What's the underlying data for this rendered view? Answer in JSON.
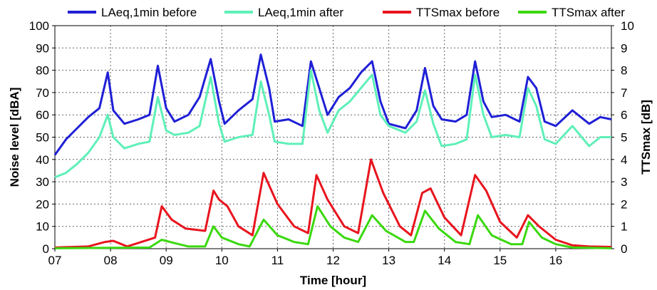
{
  "chart_data": {
    "type": "line",
    "xlabel": "Time [hour]",
    "ylabel": "Noise level [dBA]",
    "y2label": "TTSmax [dB]",
    "xlim": [
      7,
      17
    ],
    "ylim": [
      0,
      100
    ],
    "y2lim": [
      0,
      10
    ],
    "x_ticks": [
      "07",
      "08",
      "09",
      "10",
      "11",
      "12",
      "13",
      "14",
      "15",
      "16"
    ],
    "y_ticks": [
      "0",
      "10",
      "20",
      "30",
      "40",
      "50",
      "60",
      "70",
      "80",
      "90",
      "100"
    ],
    "y2_ticks": [
      "0",
      "1",
      "2",
      "3",
      "4",
      "5",
      "6",
      "7",
      "8",
      "9",
      "10"
    ],
    "grid": true,
    "legend_position": "top",
    "series": [
      {
        "name": "LAeq,1min before",
        "axis": "left",
        "color": "#1f1fd6",
        "x": [
          7.0,
          7.2,
          7.4,
          7.6,
          7.8,
          7.95,
          8.05,
          8.25,
          8.5,
          8.7,
          8.85,
          9.0,
          9.15,
          9.4,
          9.6,
          9.8,
          9.95,
          10.05,
          10.3,
          10.55,
          10.7,
          10.85,
          10.95,
          11.2,
          11.45,
          11.6,
          11.75,
          11.9,
          12.1,
          12.3,
          12.5,
          12.7,
          12.85,
          13.0,
          13.3,
          13.5,
          13.65,
          13.8,
          13.95,
          14.2,
          14.4,
          14.55,
          14.7,
          14.85,
          15.1,
          15.35,
          15.5,
          15.65,
          15.8,
          16.0,
          16.3,
          16.6,
          16.8,
          17.0
        ],
        "y": [
          42,
          49,
          54,
          59,
          63,
          79,
          62,
          56,
          58,
          60,
          82,
          63,
          57,
          60,
          68,
          85,
          66,
          56,
          62,
          67,
          87,
          72,
          57,
          58,
          55,
          84,
          72,
          60,
          68,
          72,
          79,
          84,
          66,
          56,
          54,
          62,
          81,
          64,
          58,
          57,
          60,
          84,
          66,
          59,
          60,
          57,
          77,
          72,
          57,
          55,
          62,
          56,
          59,
          58
        ]
      },
      {
        "name": "LAeq,1min after",
        "axis": "left",
        "color": "#5ef0b8",
        "x": [
          7.0,
          7.2,
          7.4,
          7.6,
          7.8,
          7.95,
          8.05,
          8.25,
          8.5,
          8.7,
          8.85,
          9.0,
          9.15,
          9.4,
          9.6,
          9.8,
          9.95,
          10.05,
          10.3,
          10.55,
          10.7,
          10.85,
          10.95,
          11.2,
          11.45,
          11.6,
          11.75,
          11.9,
          12.1,
          12.3,
          12.5,
          12.7,
          12.85,
          13.0,
          13.3,
          13.5,
          13.65,
          13.8,
          13.95,
          14.2,
          14.4,
          14.55,
          14.7,
          14.85,
          15.1,
          15.35,
          15.5,
          15.65,
          15.8,
          16.0,
          16.3,
          16.6,
          16.8,
          17.0
        ],
        "y": [
          32,
          34,
          38,
          43,
          50,
          60,
          50,
          45,
          47,
          48,
          68,
          53,
          51,
          52,
          55,
          77,
          56,
          48,
          50,
          51,
          75,
          60,
          48,
          47,
          47,
          80,
          62,
          52,
          62,
          66,
          72,
          78,
          60,
          55,
          52,
          57,
          71,
          56,
          46,
          47,
          49,
          78,
          60,
          50,
          51,
          50,
          72,
          64,
          49,
          47,
          55,
          46,
          50,
          50
        ]
      },
      {
        "name": "TTSmax before",
        "axis": "right",
        "color": "#e8141e",
        "x": [
          7.0,
          7.6,
          7.9,
          8.05,
          8.15,
          8.3,
          8.8,
          8.92,
          9.1,
          9.35,
          9.7,
          9.85,
          9.95,
          10.1,
          10.3,
          10.55,
          10.75,
          11.0,
          11.3,
          11.55,
          11.7,
          11.9,
          12.2,
          12.45,
          12.68,
          12.9,
          13.2,
          13.4,
          13.6,
          13.75,
          14.0,
          14.3,
          14.55,
          14.75,
          15.0,
          15.3,
          15.5,
          15.7,
          16.0,
          16.3,
          16.6,
          17.0
        ],
        "y": [
          0.05,
          0.1,
          0.3,
          0.35,
          0.25,
          0.1,
          0.5,
          1.9,
          1.3,
          0.9,
          0.8,
          2.6,
          2.2,
          1.9,
          1.0,
          0.6,
          3.4,
          2.0,
          1.0,
          0.7,
          3.3,
          2.2,
          1.0,
          0.7,
          4.0,
          2.5,
          1.0,
          0.6,
          2.5,
          2.7,
          1.4,
          0.6,
          3.3,
          2.6,
          1.2,
          0.5,
          1.5,
          1.0,
          0.4,
          0.15,
          0.1,
          0.08
        ]
      },
      {
        "name": "TTSmax after",
        "axis": "right",
        "color": "#3ad80e",
        "x": [
          7.0,
          8.7,
          8.92,
          9.15,
          9.4,
          9.7,
          9.85,
          10.0,
          10.3,
          10.5,
          10.75,
          11.0,
          11.3,
          11.55,
          11.72,
          11.95,
          12.2,
          12.45,
          12.7,
          12.95,
          13.3,
          13.45,
          13.65,
          13.9,
          14.2,
          14.45,
          14.6,
          14.85,
          15.2,
          15.4,
          15.52,
          15.75,
          16.0,
          16.3,
          17.0
        ],
        "y": [
          0.02,
          0.05,
          0.4,
          0.25,
          0.1,
          0.1,
          1.0,
          0.5,
          0.2,
          0.1,
          1.3,
          0.6,
          0.3,
          0.2,
          1.9,
          1.0,
          0.5,
          0.3,
          1.5,
          0.8,
          0.3,
          0.3,
          1.7,
          0.9,
          0.3,
          0.2,
          1.5,
          0.6,
          0.2,
          0.2,
          1.2,
          0.5,
          0.2,
          0.05,
          0.02
        ]
      }
    ]
  }
}
